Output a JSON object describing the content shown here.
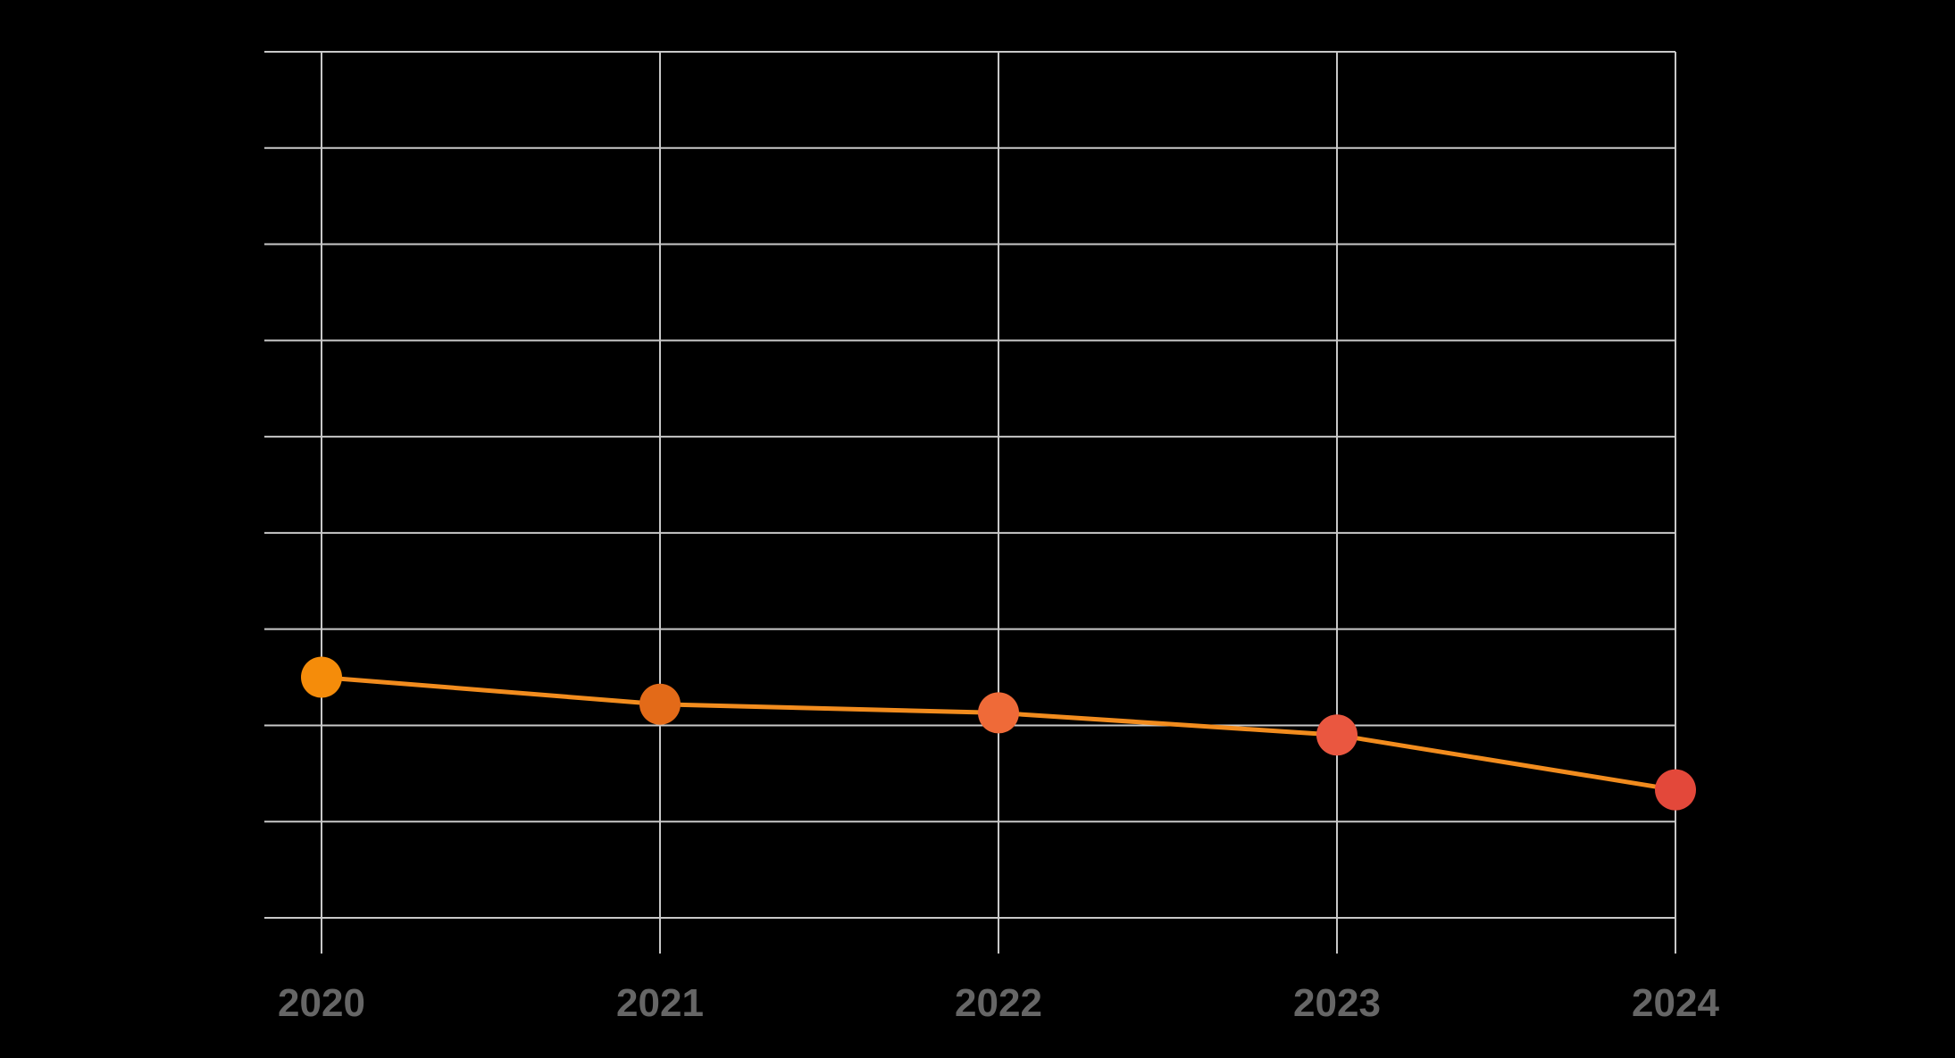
{
  "chart_data": {
    "type": "line",
    "title": "",
    "xlabel": "",
    "ylabel": "",
    "categories": [
      "2020",
      "2021",
      "2022",
      "2023",
      "2024"
    ],
    "values": [
      2.5,
      2.22,
      2.13,
      1.9,
      1.33
    ],
    "ylim": [
      0,
      9
    ],
    "grid": true,
    "y_tick_count": 10,
    "colors": {
      "background": "#000000",
      "grid": "#c8c8c8",
      "line": "#f28c1e",
      "tick_label": "#666666",
      "points": [
        "#f58c0a",
        "#e36a18",
        "#ef6a38",
        "#ea5740",
        "#e3483a"
      ]
    }
  }
}
